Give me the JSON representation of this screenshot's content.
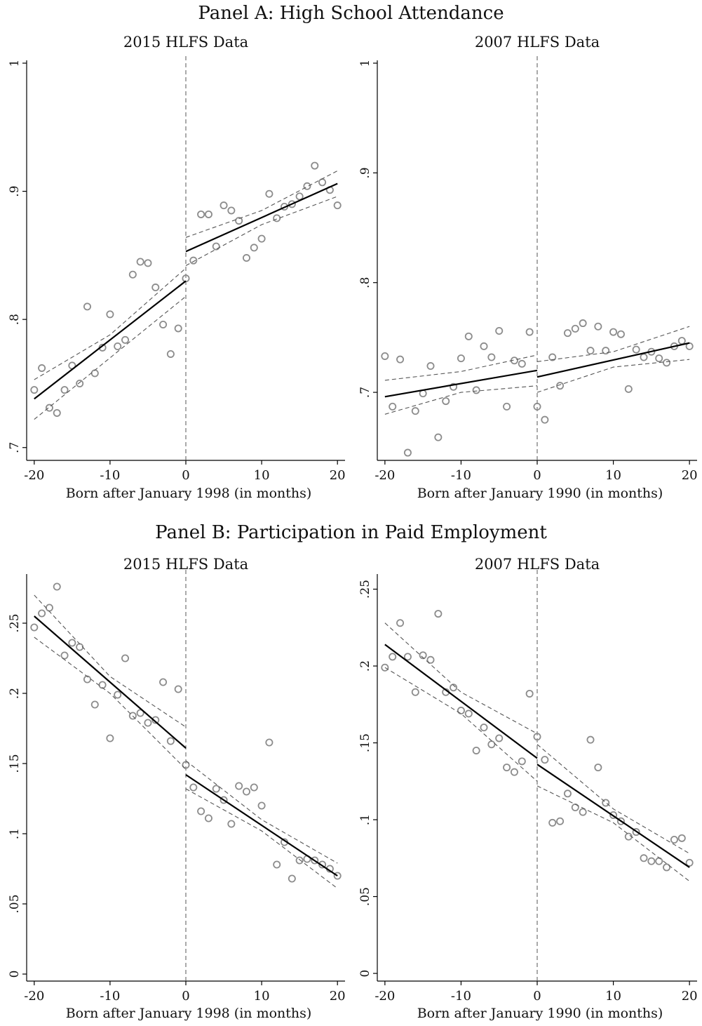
{
  "panels": [
    {
      "title": "Panel A: High School Attendance"
    },
    {
      "title": "Panel B: Participation in Paid Employment"
    }
  ],
  "colors": {
    "marker": "#8c8c8c",
    "fit": "#000000",
    "ci": "#555555",
    "axis": "#000000"
  },
  "chart_data": [
    {
      "type": "scatter",
      "title": "2015 HLFS Data",
      "xlabel": "Born after January 1998 (in months)",
      "ylabel": "",
      "xlim": [
        -21,
        21
      ],
      "ylim": [
        0.69,
        1.0
      ],
      "xticks": [
        -20,
        -10,
        0,
        10,
        20
      ],
      "xtick_labels": [
        "-20",
        "-10",
        "0",
        "10",
        "20"
      ],
      "yticks": [
        0.7,
        0.8,
        0.9,
        1.0
      ],
      "ytick_labels": [
        ".7",
        ".8",
        ".9",
        "1"
      ],
      "grid": false,
      "cutoff": 0,
      "points": {
        "x": [
          -20,
          -19,
          -18,
          -17,
          -16,
          -15,
          -14,
          -13,
          -12,
          -11,
          -10,
          -9,
          -8,
          -7,
          -6,
          -5,
          -4,
          -3,
          -2,
          -1,
          0,
          1,
          2,
          3,
          4,
          5,
          6,
          7,
          8,
          9,
          10,
          11,
          12,
          13,
          14,
          15,
          16,
          17,
          18,
          19,
          20
        ],
        "y": [
          0.745,
          0.762,
          0.731,
          0.727,
          0.745,
          0.764,
          0.75,
          0.81,
          0.758,
          0.778,
          0.804,
          0.779,
          0.784,
          0.835,
          0.845,
          0.844,
          0.825,
          0.796,
          0.773,
          0.793,
          0.832,
          0.846,
          0.882,
          0.882,
          0.857,
          0.889,
          0.885,
          0.877,
          0.848,
          0.856,
          0.863,
          0.898,
          0.879,
          0.888,
          0.89,
          0.896,
          0.904,
          0.92,
          0.907,
          0.901,
          0.889
        ]
      },
      "fit_left": {
        "x": [
          -20,
          0
        ],
        "y": [
          0.738,
          0.83
        ]
      },
      "fit_right": {
        "x": [
          0,
          20
        ],
        "y": [
          0.853,
          0.906
        ]
      },
      "ci_left_upper": {
        "x": [
          -20,
          -10,
          0
        ],
        "y": [
          0.753,
          0.788,
          0.84
        ]
      },
      "ci_left_lower": {
        "x": [
          -20,
          -10,
          0
        ],
        "y": [
          0.722,
          0.77,
          0.818
        ]
      },
      "ci_right_upper": {
        "x": [
          0,
          10,
          20
        ],
        "y": [
          0.864,
          0.885,
          0.916
        ]
      },
      "ci_right_lower": {
        "x": [
          0,
          10,
          20
        ],
        "y": [
          0.842,
          0.874,
          0.896
        ]
      }
    },
    {
      "type": "scatter",
      "title": "2007 HLFS Data",
      "xlabel": "Born after January 1990 (in months)",
      "ylabel": "",
      "xlim": [
        -21,
        21
      ],
      "ylim": [
        0.638,
        1.0
      ],
      "xticks": [
        -20,
        -10,
        0,
        10,
        20
      ],
      "xtick_labels": [
        "-20",
        "-10",
        "0",
        "10",
        "20"
      ],
      "yticks": [
        0.7,
        0.8,
        0.9,
        1.0
      ],
      "ytick_labels": [
        ".7",
        ".8",
        ".9",
        "1"
      ],
      "grid": false,
      "cutoff": 0,
      "points": {
        "x": [
          -20,
          -19,
          -18,
          -17,
          -16,
          -15,
          -14,
          -13,
          -12,
          -11,
          -10,
          -9,
          -8,
          -7,
          -6,
          -5,
          -4,
          -3,
          -2,
          -1,
          0,
          1,
          2,
          3,
          4,
          5,
          6,
          7,
          8,
          9,
          10,
          11,
          12,
          13,
          14,
          15,
          16,
          17,
          18,
          19,
          20
        ],
        "y": [
          0.733,
          0.687,
          0.73,
          0.645,
          0.683,
          0.699,
          0.724,
          0.659,
          0.692,
          0.705,
          0.731,
          0.751,
          0.702,
          0.742,
          0.732,
          0.756,
          0.687,
          0.729,
          0.726,
          0.755,
          0.687,
          0.675,
          0.732,
          0.706,
          0.754,
          0.758,
          0.763,
          0.738,
          0.76,
          0.738,
          0.755,
          0.753,
          0.703,
          0.739,
          0.732,
          0.737,
          0.731,
          0.727,
          0.742,
          0.747,
          0.742
        ]
      },
      "fit_left": {
        "x": [
          -20,
          0
        ],
        "y": [
          0.696,
          0.72
        ]
      },
      "fit_right": {
        "x": [
          0,
          20
        ],
        "y": [
          0.714,
          0.745
        ]
      },
      "ci_left_upper": {
        "x": [
          -20,
          -10,
          0
        ],
        "y": [
          0.711,
          0.719,
          0.734
        ]
      },
      "ci_left_lower": {
        "x": [
          -20,
          -10,
          0
        ],
        "y": [
          0.68,
          0.7,
          0.706
        ]
      },
      "ci_right_upper": {
        "x": [
          0,
          10,
          20
        ],
        "y": [
          0.728,
          0.737,
          0.76
        ]
      },
      "ci_right_lower": {
        "x": [
          0,
          10,
          20
        ],
        "y": [
          0.7,
          0.723,
          0.73
        ]
      }
    },
    {
      "type": "scatter",
      "title": "2015 HLFS Data",
      "xlabel": "Born after January 1998 (in months)",
      "ylabel": "",
      "xlim": [
        -21,
        21
      ],
      "ylim": [
        -0.005,
        0.283
      ],
      "xticks": [
        -20,
        -10,
        0,
        10,
        20
      ],
      "xtick_labels": [
        "-20",
        "-10",
        "0",
        "10",
        "20"
      ],
      "yticks": [
        0,
        0.05,
        0.1,
        0.15,
        0.2,
        0.25
      ],
      "ytick_labels": [
        "0",
        ".05",
        ".1",
        ".15",
        ".2",
        ".25"
      ],
      "grid": false,
      "cutoff": 0,
      "points": {
        "x": [
          -20,
          -19,
          -18,
          -17,
          -16,
          -15,
          -14,
          -13,
          -12,
          -11,
          -10,
          -9,
          -8,
          -7,
          -6,
          -5,
          -4,
          -3,
          -2,
          -1,
          0,
          1,
          2,
          3,
          4,
          5,
          6,
          7,
          8,
          9,
          10,
          11,
          12,
          13,
          14,
          15,
          16,
          17,
          18,
          19,
          20
        ],
        "y": [
          0.247,
          0.257,
          0.261,
          0.276,
          0.227,
          0.236,
          0.233,
          0.21,
          0.192,
          0.206,
          0.168,
          0.199,
          0.225,
          0.184,
          0.186,
          0.179,
          0.181,
          0.208,
          0.166,
          0.203,
          0.149,
          0.133,
          0.116,
          0.111,
          0.132,
          0.124,
          0.107,
          0.134,
          0.13,
          0.133,
          0.12,
          0.165,
          0.078,
          0.094,
          0.068,
          0.081,
          0.082,
          0.081,
          0.078,
          0.075,
          0.07
        ]
      },
      "fit_left": {
        "x": [
          -20,
          0
        ],
        "y": [
          0.255,
          0.161
        ]
      },
      "fit_right": {
        "x": [
          0,
          20
        ],
        "y": [
          0.142,
          0.07
        ]
      },
      "ci_left_upper": {
        "x": [
          -20,
          -10,
          0
        ],
        "y": [
          0.27,
          0.212,
          0.176
        ]
      },
      "ci_left_lower": {
        "x": [
          -20,
          -10,
          0
        ],
        "y": [
          0.24,
          0.2,
          0.146
        ]
      },
      "ci_right_upper": {
        "x": [
          0,
          10,
          20
        ],
        "y": [
          0.152,
          0.11,
          0.079
        ]
      },
      "ci_right_lower": {
        "x": [
          0,
          10,
          20
        ],
        "y": [
          0.132,
          0.102,
          0.061
        ]
      }
    },
    {
      "type": "scatter",
      "title": "2007 HLFS Data",
      "xlabel": "Born after January 1990 (in months)",
      "ylabel": "",
      "xlim": [
        -21,
        21
      ],
      "ylim": [
        -0.005,
        0.258
      ],
      "xticks": [
        -20,
        -10,
        0,
        10,
        20
      ],
      "xtick_labels": [
        "-20",
        "-10",
        "0",
        "10",
        "20"
      ],
      "yticks": [
        0,
        0.05,
        0.1,
        0.15,
        0.2,
        0.25
      ],
      "ytick_labels": [
        "0",
        ".05",
        ".1",
        ".15",
        ".2",
        ".25"
      ],
      "grid": false,
      "cutoff": 0,
      "points": {
        "x": [
          -20,
          -19,
          -18,
          -17,
          -16,
          -15,
          -14,
          -13,
          -12,
          -11,
          -10,
          -9,
          -8,
          -7,
          -6,
          -5,
          -4,
          -3,
          -2,
          -1,
          0,
          1,
          2,
          3,
          4,
          5,
          6,
          7,
          8,
          9,
          10,
          11,
          12,
          13,
          14,
          15,
          16,
          17,
          18,
          19,
          20
        ],
        "y": [
          0.199,
          0.206,
          0.228,
          0.206,
          0.183,
          0.207,
          0.204,
          0.234,
          0.183,
          0.186,
          0.171,
          0.169,
          0.145,
          0.16,
          0.149,
          0.153,
          0.134,
          0.131,
          0.138,
          0.182,
          0.154,
          0.139,
          0.098,
          0.099,
          0.117,
          0.108,
          0.105,
          0.152,
          0.134,
          0.111,
          0.103,
          0.099,
          0.089,
          0.092,
          0.075,
          0.073,
          0.073,
          0.069,
          0.087,
          0.088,
          0.072
        ]
      },
      "fit_left": {
        "x": [
          -20,
          0
        ],
        "y": [
          0.214,
          0.14
        ]
      },
      "fit_right": {
        "x": [
          0,
          20
        ],
        "y": [
          0.136,
          0.069
        ]
      },
      "ci_left_upper": {
        "x": [
          -20,
          -10,
          0
        ],
        "y": [
          0.228,
          0.183,
          0.156
        ]
      },
      "ci_left_lower": {
        "x": [
          -20,
          -10,
          0
        ],
        "y": [
          0.199,
          0.169,
          0.125
        ]
      },
      "ci_right_upper": {
        "x": [
          0,
          10,
          20
        ],
        "y": [
          0.149,
          0.107,
          0.078
        ]
      },
      "ci_right_lower": {
        "x": [
          0,
          10,
          20
        ],
        "y": [
          0.122,
          0.098,
          0.06
        ]
      }
    }
  ]
}
